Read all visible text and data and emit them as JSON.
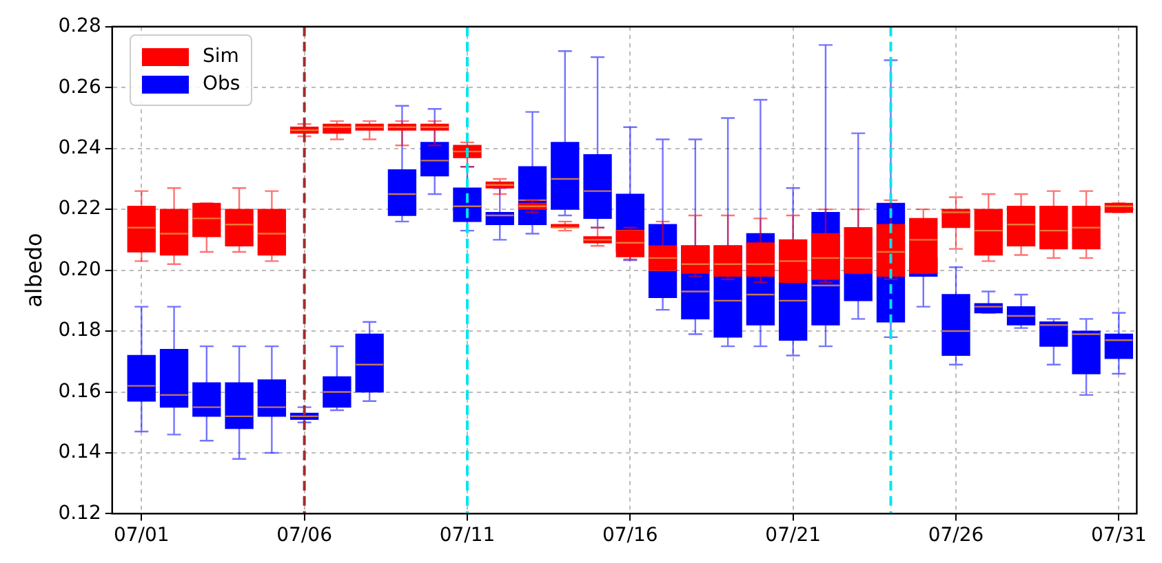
{
  "chart_data": {
    "type": "box",
    "ylabel": "albedo",
    "x": [
      "--07-01",
      "--07-02",
      "--07-03",
      "--07-04",
      "--07-05",
      "--07-06",
      "--07-07",
      "--07-08",
      "--07-09",
      "--07-10",
      "--07-11",
      "--07-12",
      "--07-13",
      "--07-14",
      "--07-15",
      "--07-16",
      "--07-17",
      "--07-18",
      "--07-19",
      "--07-20",
      "--07-21",
      "--07-22",
      "--07-23",
      "--07-24",
      "--07-25",
      "--07-26",
      "--07-27",
      "--07-28",
      "--07-29",
      "--07-30",
      "--07-31"
    ],
    "xlim": [
      "--06-30T02:24",
      "--07-31T13:12"
    ],
    "xticks": [
      {
        "value": "--07-01",
        "label": "07/01"
      },
      {
        "value": "--07-06",
        "label": "07/06"
      },
      {
        "value": "--07-11",
        "label": "07/11"
      },
      {
        "value": "--07-16",
        "label": "07/16"
      },
      {
        "value": "--07-21",
        "label": "07/21"
      },
      {
        "value": "--07-26",
        "label": "07/26"
      },
      {
        "value": "--07-31",
        "label": "07/31"
      }
    ],
    "ylim": [
      0.12,
      0.28
    ],
    "yticks": [
      {
        "value": 0.12,
        "label": "0.12"
      },
      {
        "value": 0.14,
        "label": "0.14"
      },
      {
        "value": 0.16,
        "label": "0.16"
      },
      {
        "value": 0.18,
        "label": "0.18"
      },
      {
        "value": 0.2,
        "label": "0.20"
      },
      {
        "value": 0.22,
        "label": "0.22"
      },
      {
        "value": 0.24,
        "label": "0.24"
      },
      {
        "value": 0.26,
        "label": "0.26"
      },
      {
        "value": 0.28,
        "label": "0.28"
      }
    ],
    "grid": true,
    "legend": "top left",
    "ref_lines": [
      {
        "axis": "x",
        "value": "--07-06",
        "color": "#a52a2a",
        "line_style": "dashed"
      },
      {
        "axis": "x",
        "value": "--07-11",
        "color": "#00e5ee",
        "line_style": "dashed"
      },
      {
        "axis": "x",
        "value": "--07-24",
        "color": "#00e5ee",
        "line_style": "dashed"
      }
    ],
    "series": [
      {
        "name": "Sim",
        "color": "#ff0000",
        "boxes": [
          {
            "low": 0.203,
            "q1": 0.206,
            "median": 0.214,
            "q3": 0.221,
            "high": 0.226
          },
          {
            "low": 0.202,
            "q1": 0.205,
            "median": 0.212,
            "q3": 0.22,
            "high": 0.227
          },
          {
            "low": 0.206,
            "q1": 0.211,
            "median": 0.217,
            "q3": 0.222,
            "high": 0.222
          },
          {
            "low": 0.206,
            "q1": 0.208,
            "median": 0.215,
            "q3": 0.22,
            "high": 0.227
          },
          {
            "low": 0.203,
            "q1": 0.205,
            "median": 0.212,
            "q3": 0.22,
            "high": 0.226
          },
          {
            "low": 0.244,
            "q1": 0.245,
            "median": 0.246,
            "q3": 0.247,
            "high": 0.248
          },
          {
            "low": 0.243,
            "q1": 0.245,
            "median": 0.247,
            "q3": 0.248,
            "high": 0.249
          },
          {
            "low": 0.243,
            "q1": 0.246,
            "median": 0.247,
            "q3": 0.248,
            "high": 0.249
          },
          {
            "low": 0.241,
            "q1": 0.246,
            "median": 0.247,
            "q3": 0.248,
            "high": 0.249
          },
          {
            "low": 0.241,
            "q1": 0.246,
            "median": 0.247,
            "q3": 0.248,
            "high": 0.249
          },
          {
            "low": 0.234,
            "q1": 0.237,
            "median": 0.239,
            "q3": 0.241,
            "high": 0.242
          },
          {
            "low": 0.225,
            "q1": 0.227,
            "median": 0.228,
            "q3": 0.229,
            "high": 0.23
          },
          {
            "low": 0.219,
            "q1": 0.22,
            "median": 0.221,
            "q3": 0.222,
            "high": 0.223
          },
          {
            "low": 0.213,
            "q1": 0.214,
            "median": 0.214,
            "q3": 0.215,
            "high": 0.216
          },
          {
            "low": 0.208,
            "q1": 0.209,
            "median": 0.21,
            "q3": 0.211,
            "high": 0.214
          },
          {
            "low": 0.2036,
            "q1": 0.2044,
            "median": 0.209,
            "q3": 0.213,
            "high": 0.214
          },
          {
            "low": 0.2,
            "q1": 0.2,
            "median": 0.204,
            "q3": 0.208,
            "high": 0.216
          },
          {
            "low": 0.198,
            "q1": 0.199,
            "median": 0.202,
            "q3": 0.208,
            "high": 0.218
          },
          {
            "low": 0.197,
            "q1": 0.198,
            "median": 0.202,
            "q3": 0.208,
            "high": 0.218
          },
          {
            "low": 0.196,
            "q1": 0.198,
            "median": 0.202,
            "q3": 0.209,
            "high": 0.217
          },
          {
            "low": 0.196,
            "q1": 0.196,
            "median": 0.203,
            "q3": 0.21,
            "high": 0.218
          },
          {
            "low": 0.196,
            "q1": 0.197,
            "median": 0.204,
            "q3": 0.212,
            "high": 0.22
          },
          {
            "low": 0.199,
            "q1": 0.199,
            "median": 0.204,
            "q3": 0.214,
            "high": 0.22
          },
          {
            "low": 0.197,
            "q1": 0.198,
            "median": 0.206,
            "q3": 0.215,
            "high": 0.223
          },
          {
            "low": 0.199,
            "q1": 0.199,
            "median": 0.21,
            "q3": 0.217,
            "high": 0.22
          },
          {
            "low": 0.207,
            "q1": 0.214,
            "median": 0.219,
            "q3": 0.22,
            "high": 0.224
          },
          {
            "low": 0.203,
            "q1": 0.205,
            "median": 0.213,
            "q3": 0.22,
            "high": 0.225
          },
          {
            "low": 0.205,
            "q1": 0.208,
            "median": 0.215,
            "q3": 0.221,
            "high": 0.225
          },
          {
            "low": 0.204,
            "q1": 0.207,
            "median": 0.213,
            "q3": 0.221,
            "high": 0.226
          },
          {
            "low": 0.204,
            "q1": 0.207,
            "median": 0.214,
            "q3": 0.221,
            "high": 0.226
          },
          {
            "low": 0.219,
            "q1": 0.219,
            "median": 0.221,
            "q3": 0.222,
            "high": 0.222
          }
        ]
      },
      {
        "name": "Obs",
        "color": "#0000ff",
        "boxes": [
          {
            "low": 0.147,
            "q1": 0.157,
            "median": 0.162,
            "q3": 0.172,
            "high": 0.188
          },
          {
            "low": 0.146,
            "q1": 0.155,
            "median": 0.159,
            "q3": 0.174,
            "high": 0.188
          },
          {
            "low": 0.144,
            "q1": 0.152,
            "median": 0.155,
            "q3": 0.163,
            "high": 0.175
          },
          {
            "low": 0.138,
            "q1": 0.148,
            "median": 0.152,
            "q3": 0.163,
            "high": 0.175
          },
          {
            "low": 0.14,
            "q1": 0.152,
            "median": 0.155,
            "q3": 0.164,
            "high": 0.175
          },
          {
            "low": 0.15,
            "q1": 0.151,
            "median": 0.152,
            "q3": 0.153,
            "high": 0.155
          },
          {
            "low": 0.154,
            "q1": 0.155,
            "median": 0.16,
            "q3": 0.165,
            "high": 0.175
          },
          {
            "low": 0.157,
            "q1": 0.16,
            "median": 0.169,
            "q3": 0.179,
            "high": 0.183
          },
          {
            "low": 0.216,
            "q1": 0.218,
            "median": 0.225,
            "q3": 0.233,
            "high": 0.254
          },
          {
            "low": 0.225,
            "q1": 0.231,
            "median": 0.236,
            "q3": 0.242,
            "high": 0.253
          },
          {
            "low": 0.213,
            "q1": 0.216,
            "median": 0.221,
            "q3": 0.227,
            "high": 0.234
          },
          {
            "low": 0.21,
            "q1": 0.215,
            "median": 0.218,
            "q3": 0.219,
            "high": 0.227
          },
          {
            "low": 0.212,
            "q1": 0.215,
            "median": 0.223,
            "q3": 0.234,
            "high": 0.252
          },
          {
            "low": 0.218,
            "q1": 0.22,
            "median": 0.23,
            "q3": 0.242,
            "high": 0.272
          },
          {
            "low": 0.214,
            "q1": 0.217,
            "median": 0.226,
            "q3": 0.238,
            "high": 0.27
          },
          {
            "low": 0.2033,
            "q1": 0.206,
            "median": 0.213,
            "q3": 0.225,
            "high": 0.247
          },
          {
            "low": 0.187,
            "q1": 0.191,
            "median": 0.2,
            "q3": 0.215,
            "high": 0.243
          },
          {
            "low": 0.179,
            "q1": 0.184,
            "median": 0.193,
            "q3": 0.208,
            "high": 0.243
          },
          {
            "low": 0.175,
            "q1": 0.178,
            "median": 0.19,
            "q3": 0.208,
            "high": 0.25
          },
          {
            "low": 0.175,
            "q1": 0.182,
            "median": 0.192,
            "q3": 0.212,
            "high": 0.256
          },
          {
            "low": 0.172,
            "q1": 0.177,
            "median": 0.19,
            "q3": 0.2,
            "high": 0.227
          },
          {
            "low": 0.175,
            "q1": 0.182,
            "median": 0.195,
            "q3": 0.219,
            "high": 0.274
          },
          {
            "low": 0.184,
            "q1": 0.19,
            "median": 0.2,
            "q3": 0.204,
            "high": 0.245
          },
          {
            "low": 0.178,
            "q1": 0.183,
            "median": 0.199,
            "q3": 0.222,
            "high": 0.269
          },
          {
            "low": 0.188,
            "q1": 0.198,
            "median": 0.201,
            "q3": 0.204,
            "high": 0.211
          },
          {
            "low": 0.169,
            "q1": 0.172,
            "median": 0.18,
            "q3": 0.192,
            "high": 0.201
          },
          {
            "low": 0.186,
            "q1": 0.186,
            "median": 0.188,
            "q3": 0.189,
            "high": 0.193
          },
          {
            "low": 0.181,
            "q1": 0.182,
            "median": 0.185,
            "q3": 0.188,
            "high": 0.192
          },
          {
            "low": 0.169,
            "q1": 0.175,
            "median": 0.182,
            "q3": 0.183,
            "high": 0.184
          },
          {
            "low": 0.159,
            "q1": 0.166,
            "median": 0.179,
            "q3": 0.18,
            "high": 0.184
          },
          {
            "low": 0.166,
            "q1": 0.171,
            "median": 0.177,
            "q3": 0.179,
            "high": 0.186
          }
        ]
      }
    ]
  }
}
